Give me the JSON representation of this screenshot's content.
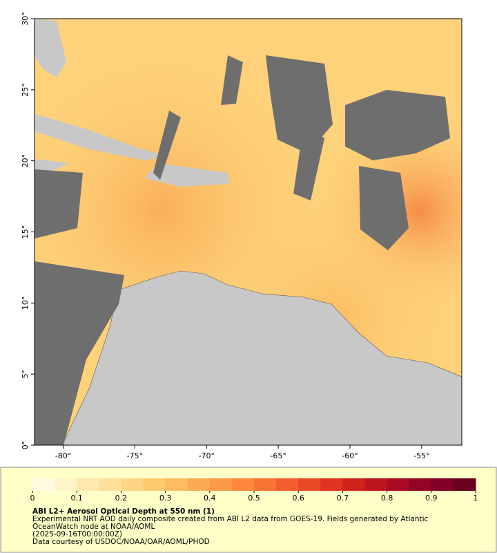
{
  "map": {
    "xaxis": {
      "lim": [
        -82,
        -52.2
      ],
      "ticks": [
        {
          "value": -80,
          "label": "-80°"
        },
        {
          "value": -75,
          "label": "-75°"
        },
        {
          "value": -70,
          "label": "-70°"
        },
        {
          "value": -65,
          "label": "-65°"
        },
        {
          "value": -60,
          "label": "-60°"
        },
        {
          "value": -55,
          "label": "-55°"
        }
      ]
    },
    "yaxis": {
      "lim": [
        0,
        30
      ],
      "ticks": [
        {
          "value": 0,
          "label": "0°"
        },
        {
          "value": 5,
          "label": "5°"
        },
        {
          "value": 10,
          "label": "10°"
        },
        {
          "value": 15,
          "label": "15°"
        },
        {
          "value": 20,
          "label": "20°"
        },
        {
          "value": 25,
          "label": "25°"
        },
        {
          "value": 30,
          "label": "30°"
        }
      ]
    }
  },
  "colorbar": {
    "lim": [
      0,
      1
    ],
    "ticks": [
      0,
      0.1,
      0.2,
      0.3,
      0.4,
      0.5,
      0.6,
      0.7,
      0.8,
      0.9,
      1
    ],
    "colors": [
      "#fffbe3",
      "#fff3c8",
      "#ffe9ae",
      "#fee09a",
      "#fed584",
      "#fec96f",
      "#febb5f",
      "#fdab52",
      "#fd9a47",
      "#fc873d",
      "#f97335",
      "#f35e2e",
      "#ea4827",
      "#de3421",
      "#cf221d",
      "#bd141f",
      "#a80a22",
      "#930524",
      "#800026",
      "#6a0020"
    ]
  },
  "caption": {
    "title": "ABI L2+ Aerosol Optical Depth at 550 nm (1)",
    "lines": [
      "Experimental NRT AOD daily composite created from ABI L2 data from GOES-19. Fields generated by Atlantic",
      "OceanWatch node at NOAA/AOML",
      "(2025-09-16T00:00:00Z)",
      "Data courtesy of USDOC/NOAA/OAR/AOML/PHOD"
    ]
  }
}
